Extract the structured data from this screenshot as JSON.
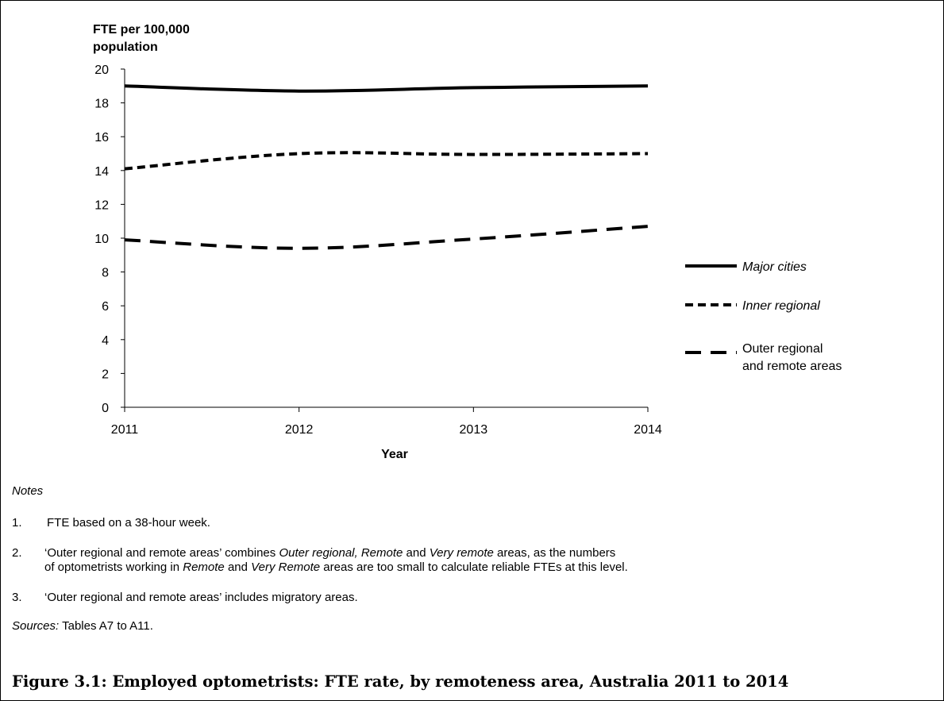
{
  "chart_data": {
    "type": "line",
    "ylabel_lines": [
      "FTE per 100,000",
      "population"
    ],
    "xlabel": "Year",
    "x": [
      "2011",
      "2012",
      "2013",
      "2014"
    ],
    "ylim": [
      0,
      20
    ],
    "yticks": [
      0,
      2,
      4,
      6,
      8,
      10,
      12,
      14,
      16,
      18,
      20
    ],
    "grid": false,
    "legend_position": "right",
    "series": [
      {
        "name": "Major cities",
        "values": [
          19.0,
          18.7,
          18.9,
          19.0
        ],
        "style": "solid"
      },
      {
        "name": "Inner regional",
        "values": [
          14.1,
          15.0,
          14.95,
          15.0
        ],
        "style": "dotted"
      },
      {
        "name_lines": [
          "Outer regional",
          "and remote areas"
        ],
        "values": [
          9.9,
          9.4,
          9.95,
          10.7
        ],
        "style": "dashed"
      }
    ]
  },
  "notes": {
    "heading": "Notes",
    "items": [
      {
        "num": "1.",
        "text": "FTE based on a 38-hour week."
      },
      {
        "num": "2.",
        "segments": [
          {
            "text": "‘Outer regional and remote areas’ combines ",
            "italic": false
          },
          {
            "text": "Outer regional, Remote",
            "italic": true
          },
          {
            "text": " and ",
            "italic": false
          },
          {
            "text": "Very remote",
            "italic": true
          },
          {
            "text": " areas, as the numbers",
            "italic": false
          },
          {
            "br": true
          },
          {
            "text": "of optometrists working in ",
            "italic": false
          },
          {
            "text": "Remote",
            "italic": true
          },
          {
            "text": " and ",
            "italic": false
          },
          {
            "text": "Very Remote",
            "italic": true
          },
          {
            "text": " areas are too small to calculate reliable FTEs at this level.",
            "italic": false
          }
        ]
      },
      {
        "num": "3.",
        "text": "‘Outer regional and remote areas’ includes migratory areas."
      }
    ],
    "sources_label": "Sources:",
    "sources_text": " Tables A7 to A11."
  },
  "caption": "Figure 3.1: Employed optometrists: FTE rate, by remoteness area, Australia 2011 to 2014"
}
